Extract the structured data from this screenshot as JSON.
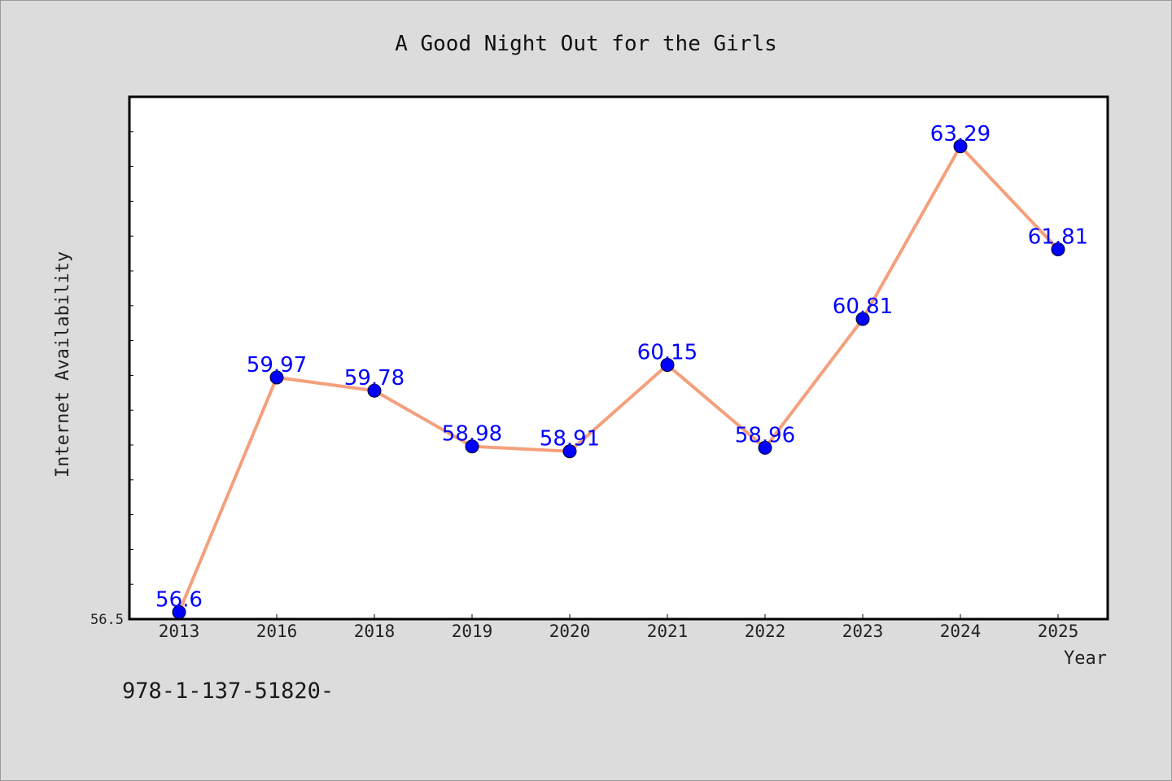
{
  "chart_data": {
    "type": "line",
    "title": "A Good Night Out for the Girls",
    "xlabel": "Year",
    "ylabel": "Internet Availability",
    "categories": [
      "2013",
      "2016",
      "2018",
      "2019",
      "2020",
      "2021",
      "2022",
      "2023",
      "2024",
      "2025"
    ],
    "values": [
      56.6,
      59.97,
      59.78,
      58.98,
      58.91,
      60.15,
      58.96,
      60.81,
      63.29,
      61.81
    ],
    "value_labels": [
      "56.6",
      "59.97",
      "59.78",
      "58.98",
      "58.91",
      "60.15",
      "58.96",
      "60.81",
      "63.29",
      "61.81"
    ],
    "y_tick_label": "56.5",
    "ylim": [
      56.5,
      64.0
    ],
    "grid": false,
    "line_color": "#f4a07c",
    "marker_color": "#0000ff",
    "label_color": "#0000ff"
  },
  "footer_code": "978-1-137-51820-"
}
